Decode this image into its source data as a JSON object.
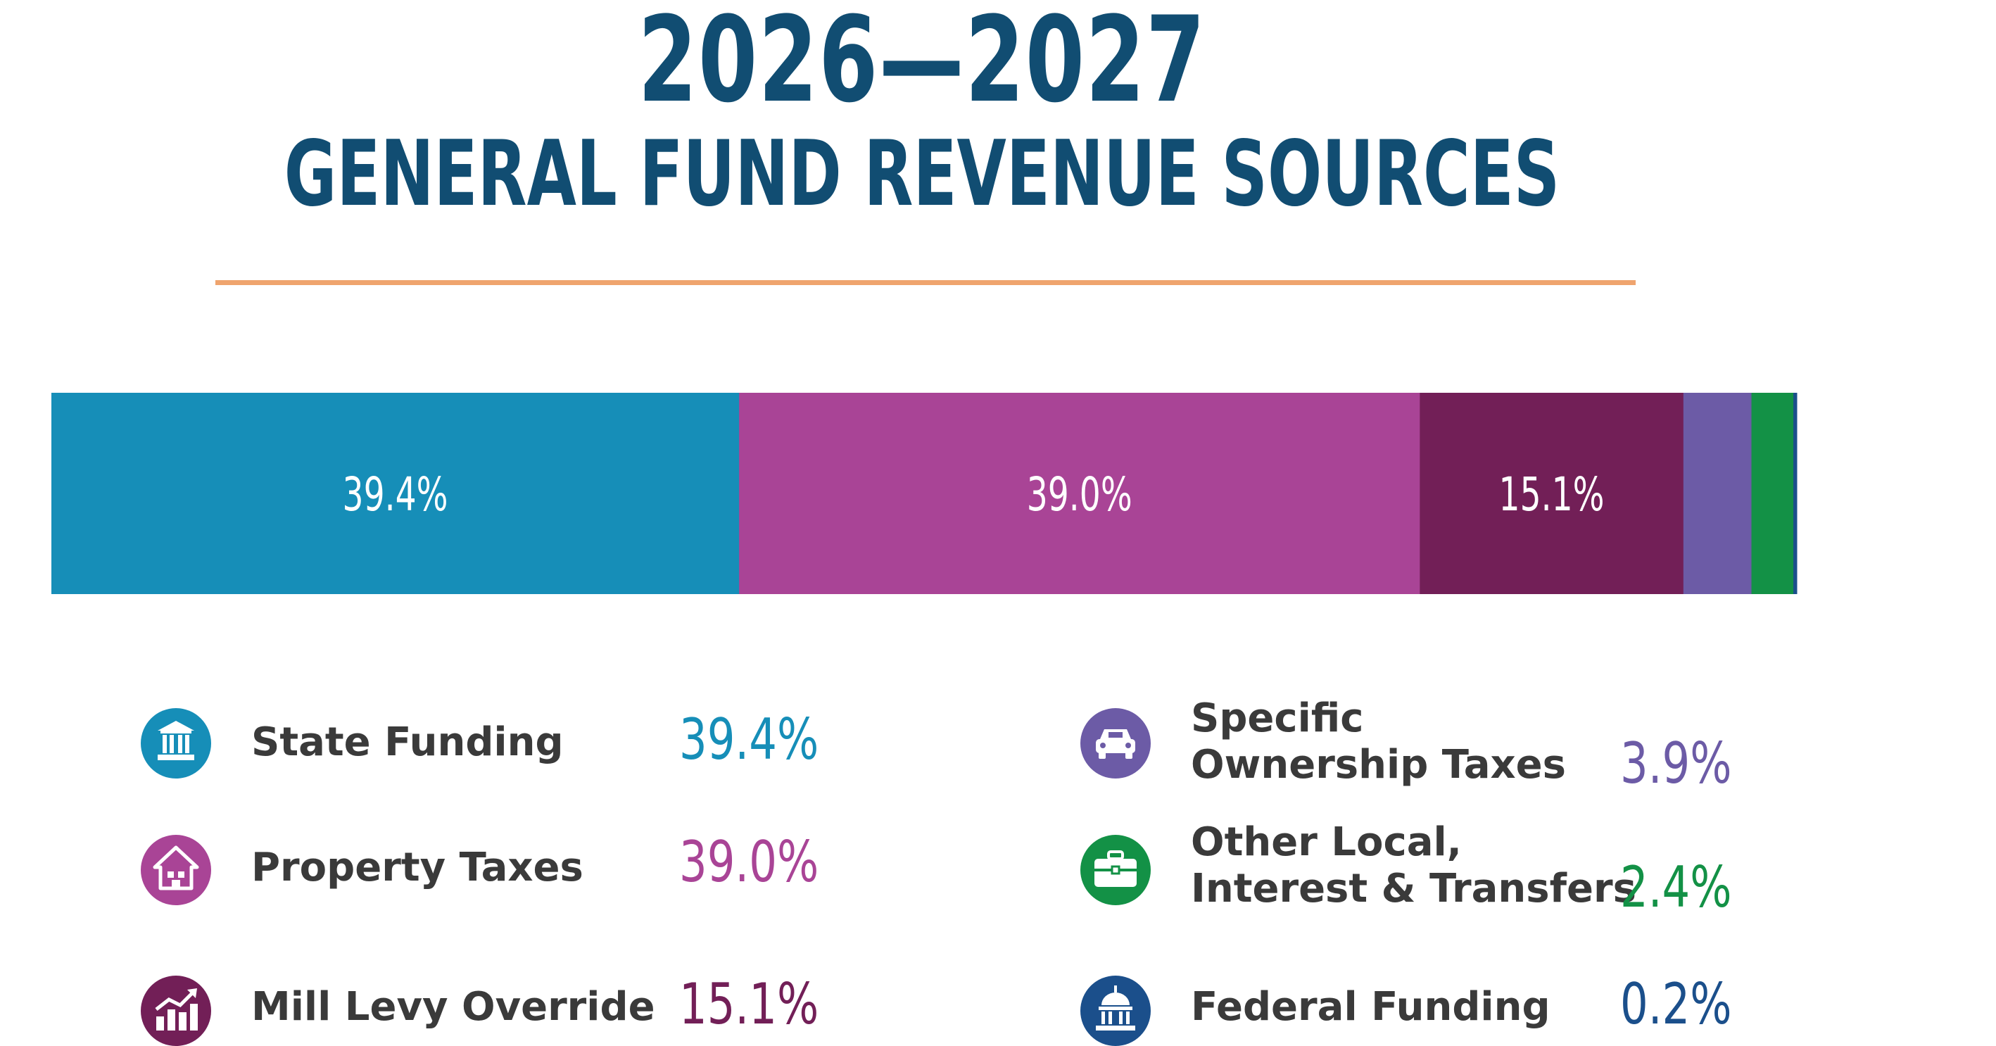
{
  "chart_data": {
    "type": "bar",
    "orientation": "stacked-horizontal",
    "title": "2026—2027",
    "subtitle": "GENERAL FUND REVENUE SOURCES",
    "unit": "%",
    "segments": [
      {
        "name": "State Funding",
        "value": 39.4,
        "label": "39.4%",
        "bar_label": "39.4%",
        "color": "#168eb8",
        "icon": "bank-columns-icon"
      },
      {
        "name": "Property Taxes",
        "value": 39.0,
        "label": "39.0%",
        "bar_label": "39.0%",
        "color": "#a94496",
        "icon": "house-icon"
      },
      {
        "name": "Mill Levy Override",
        "value": 15.1,
        "label": "15.1%",
        "bar_label": "15.1%",
        "color": "#721f57",
        "icon": "growth-chart-icon"
      },
      {
        "name_lines": [
          "Specific",
          "Ownership Taxes"
        ],
        "value": 3.9,
        "label": "3.9%",
        "bar_label": "",
        "color": "#6c5ba6",
        "icon": "car-icon"
      },
      {
        "name_lines": [
          "Other Local,",
          "Interest & Transfers"
        ],
        "value": 2.4,
        "label": "2.4%",
        "bar_label": "",
        "color": "#139146",
        "icon": "briefcase-icon"
      },
      {
        "name": "Federal Funding",
        "value": 0.2,
        "label": "0.2%",
        "bar_label": "",
        "color": "#1b4f8b",
        "icon": "capitol-dome-icon"
      }
    ],
    "accent_rule_color": "#efa46e",
    "title_color": "#114d72",
    "label_text_color": "#3a3a3a"
  }
}
